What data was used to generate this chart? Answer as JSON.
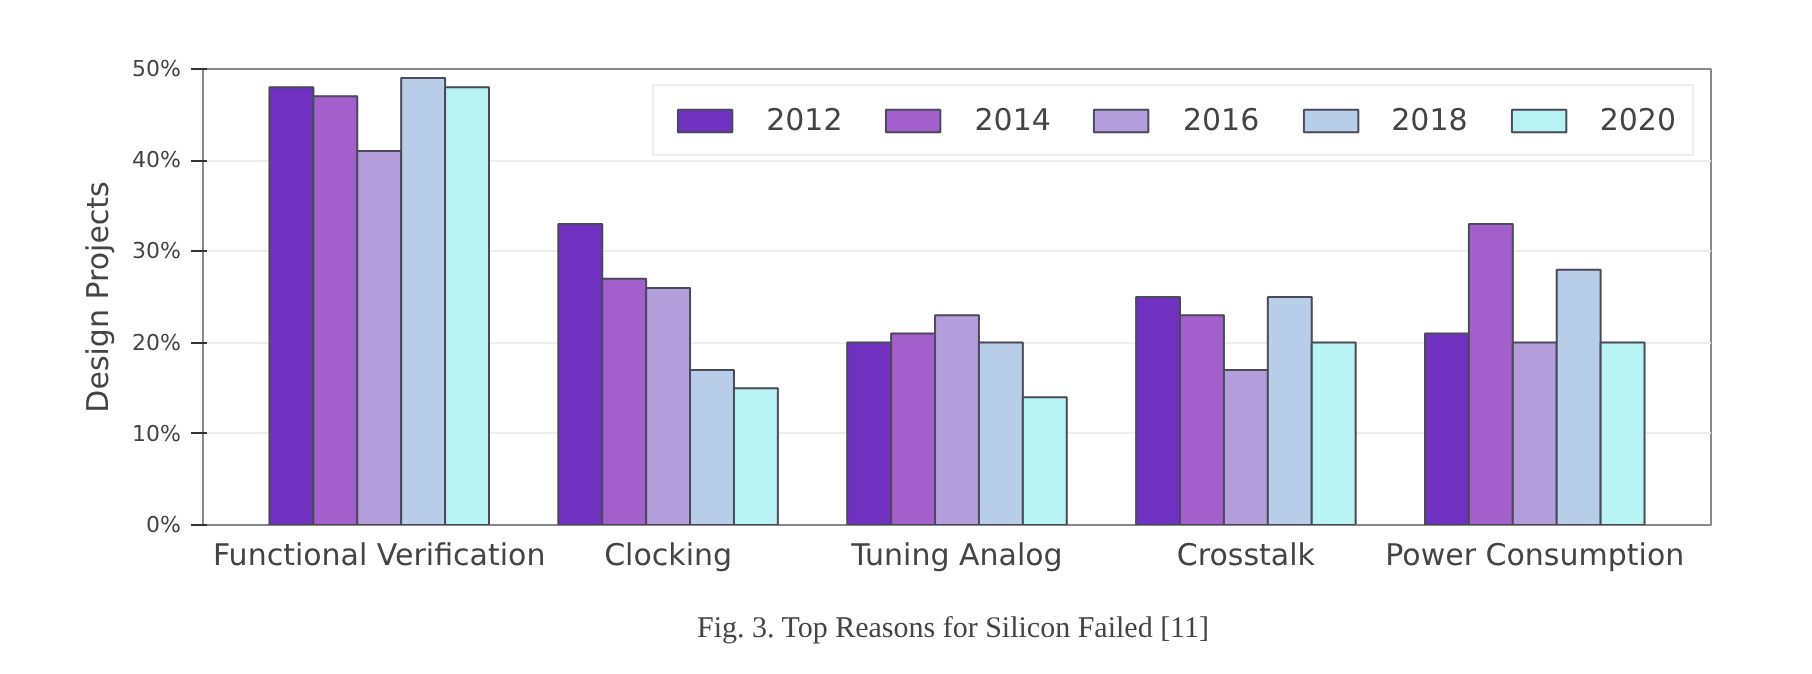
{
  "chart_data": {
    "type": "bar",
    "ylabel": "Design Projects",
    "categories": [
      "Functional Verification",
      "Clocking",
      "Tuning Analog",
      "Crosstalk",
      "Power Consumption"
    ],
    "series": [
      {
        "name": "2012",
        "color": "#7030c0",
        "values": [
          48,
          33,
          20,
          25,
          21
        ]
      },
      {
        "name": "2014",
        "color": "#a35fcb",
        "values": [
          47,
          27,
          21,
          23,
          33
        ]
      },
      {
        "name": "2016",
        "color": "#b39ddb",
        "values": [
          41,
          26,
          23,
          17,
          20
        ]
      },
      {
        "name": "2018",
        "color": "#b8cde8",
        "values": [
          49,
          17,
          20,
          25,
          28
        ]
      },
      {
        "name": "2020",
        "color": "#b8f3f3",
        "values": [
          48,
          15,
          14,
          20,
          20
        ]
      }
    ],
    "ylim": [
      0,
      50
    ],
    "yticks": [
      {
        "value": 0,
        "label": "0%"
      },
      {
        "value": 10,
        "label": "10%"
      },
      {
        "value": 20,
        "label": "20%"
      },
      {
        "value": 30,
        "label": "30%"
      },
      {
        "value": 40,
        "label": "40%"
      },
      {
        "value": 50,
        "label": "50%"
      }
    ],
    "grid": "y",
    "legend": "top right",
    "annotations": [
      "Fig. 3.  Top Reasons for Silicon Failed [11]"
    ]
  }
}
